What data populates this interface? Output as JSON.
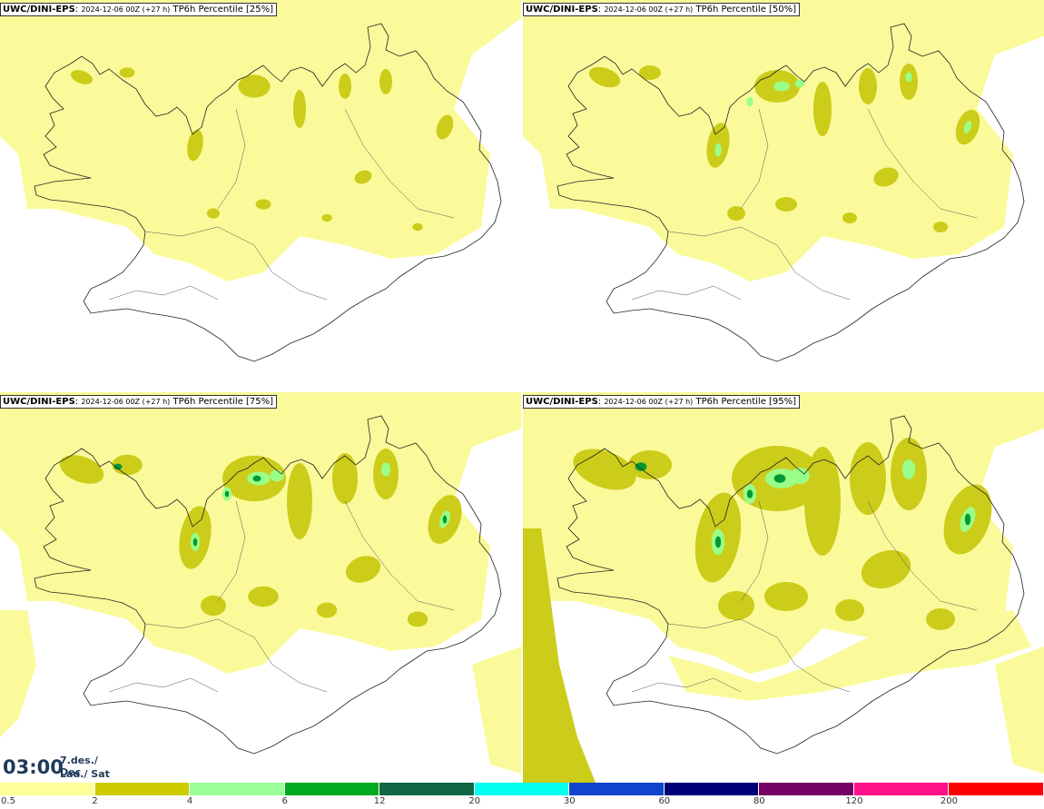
{
  "panels": [
    {
      "model": "UWC/DINI-EPS",
      "run": "2024-12-06 00Z (+27 h)",
      "field": "TP6h Percentile [25%]"
    },
    {
      "model": "UWC/DINI-EPS",
      "run": "2024-12-06 00Z (+27 h)",
      "field": "TP6h Percentile [50%]"
    },
    {
      "model": "UWC/DINI-EPS",
      "run": "2024-12-06 00Z (+27 h)",
      "field": "TP6h Percentile [75%]"
    },
    {
      "model": "UWC/DINI-EPS",
      "run": "2024-12-06 00Z (+27 h)",
      "field": "TP6h Percentile [95%]"
    }
  ],
  "valid_time": {
    "time": "03:00",
    "date": "7.des./ Dec",
    "day": "Lau./ Sat"
  },
  "legend": {
    "labels": [
      "0.5",
      "2",
      "4",
      "6",
      "12",
      "20",
      "30",
      "60",
      "80",
      "120",
      "200"
    ],
    "colors": [
      "#ffff99",
      "#cccc00",
      "#99ff99",
      "#00aa22",
      "#116644",
      "#00ffee",
      "#1144cc",
      "#000077",
      "#770066",
      "#ff1188",
      "#ff0000"
    ]
  },
  "map_colors": {
    "light": "#fafa9a",
    "mid": "#cccc1a",
    "high": "#99ff88",
    "top": "#009933",
    "coast": "#222222"
  }
}
